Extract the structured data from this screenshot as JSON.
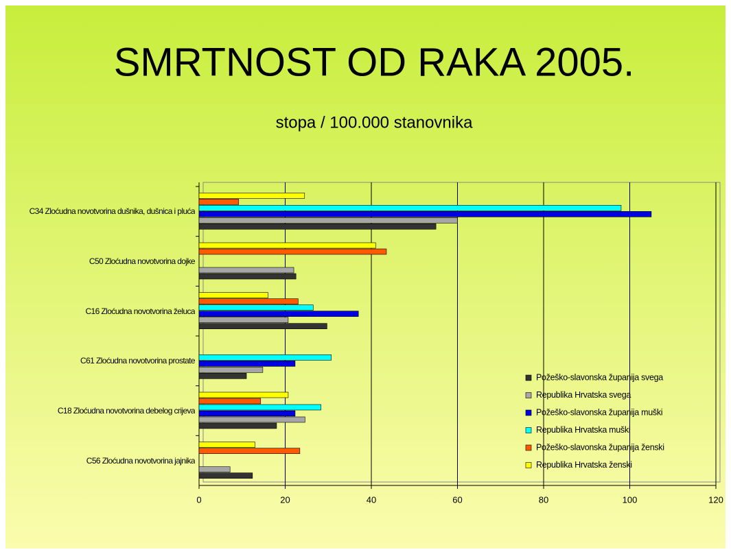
{
  "chart_data": {
    "type": "bar",
    "orientation": "horizontal",
    "title": "SMRTNOST OD RAKA 2005.",
    "subtitle": "stopa / 100.000 stanovnika",
    "categories": [
      "C34 Zloćudna novotvorina dušnika, dušnica i pluća",
      "C50 Zloćudna novotvorina dojke",
      "C16 Zloćudna novotvorina želuca",
      "C61 Zloćudna novotvorina prostate",
      "C18 Zloćudna novotvorina debelog crijeva",
      "C56 Zloćudna novotvorina jajnika"
    ],
    "series": [
      {
        "name": "Požeško-slavonska županija svega",
        "color": "#333333",
        "values": [
          55,
          22.5,
          29.7,
          11,
          18,
          12.4
        ]
      },
      {
        "name": "Republika Hrvatska svega",
        "color": "#a6a6a6",
        "values": [
          60,
          22,
          20.7,
          14.8,
          24.6,
          7.2
        ]
      },
      {
        "name": "Požeško-slavonska županija muški",
        "color": "#0000e0",
        "values": [
          105,
          0,
          37,
          22.3,
          22.3,
          0
        ]
      },
      {
        "name": "Republika Hrvatska muški",
        "color": "#00ffff",
        "values": [
          98,
          0,
          26.5,
          30.7,
          28.3,
          0
        ]
      },
      {
        "name": "Požeško-slavonska županija ženski",
        "color": "#ff5a00",
        "values": [
          9.2,
          43.5,
          23,
          0,
          14.3,
          23.4
        ]
      },
      {
        "name": "Republika Hrvatska ženski",
        "color": "#ffff00",
        "values": [
          24.5,
          41,
          16,
          0,
          20.7,
          13
        ]
      }
    ],
    "xlim": [
      0,
      120
    ],
    "xticks": [
      0,
      20,
      40,
      60,
      80,
      100,
      120
    ],
    "grid": true,
    "legend": "lower right"
  }
}
